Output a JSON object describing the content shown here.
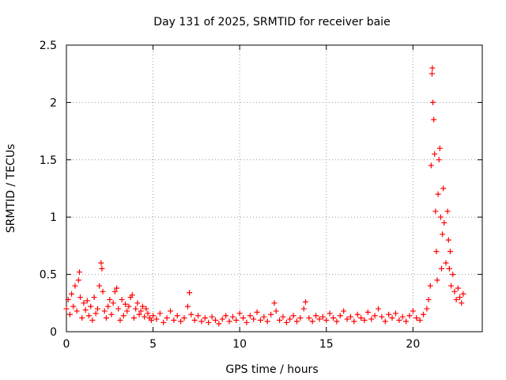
{
  "chart_data": {
    "type": "scatter",
    "title": "Day 131 of 2025, SRMTID for receiver baie",
    "xlabel": "GPS time / hours",
    "ylabel": "SRMTID / TECUs",
    "xlim": [
      0,
      24
    ],
    "ylim": [
      0,
      2.5
    ],
    "grid": true,
    "marker": "+",
    "color": "#ff0000",
    "xticks": [
      0,
      5,
      10,
      15,
      20
    ],
    "xtick_labels": [
      "0",
      "5",
      "10",
      "15",
      "20"
    ],
    "yticks": [
      0,
      0.5,
      1,
      1.5,
      2,
      2.5
    ],
    "ytick_labels": [
      "0",
      "0.5",
      "1",
      "1.5",
      "2",
      "2.5"
    ],
    "series": [
      {
        "name": "SRMTID",
        "points": [
          [
            0.0,
            0.2
          ],
          [
            0.1,
            0.28
          ],
          [
            0.2,
            0.15
          ],
          [
            0.3,
            0.33
          ],
          [
            0.4,
            0.22
          ],
          [
            0.5,
            0.4
          ],
          [
            0.6,
            0.18
          ],
          [
            0.7,
            0.45
          ],
          [
            0.75,
            0.52
          ],
          [
            0.8,
            0.3
          ],
          [
            0.9,
            0.12
          ],
          [
            1.0,
            0.25
          ],
          [
            1.1,
            0.19
          ],
          [
            1.2,
            0.27
          ],
          [
            1.3,
            0.14
          ],
          [
            1.4,
            0.22
          ],
          [
            1.5,
            0.1
          ],
          [
            1.6,
            0.3
          ],
          [
            1.7,
            0.16
          ],
          [
            1.8,
            0.2
          ],
          [
            1.9,
            0.4
          ],
          [
            2.0,
            0.6
          ],
          [
            2.05,
            0.55
          ],
          [
            2.1,
            0.35
          ],
          [
            2.2,
            0.18
          ],
          [
            2.3,
            0.12
          ],
          [
            2.4,
            0.22
          ],
          [
            2.5,
            0.28
          ],
          [
            2.6,
            0.15
          ],
          [
            2.7,
            0.25
          ],
          [
            2.8,
            0.35
          ],
          [
            2.9,
            0.38
          ],
          [
            3.0,
            0.2
          ],
          [
            3.1,
            0.1
          ],
          [
            3.2,
            0.28
          ],
          [
            3.3,
            0.14
          ],
          [
            3.4,
            0.24
          ],
          [
            3.5,
            0.18
          ],
          [
            3.6,
            0.22
          ],
          [
            3.7,
            0.3
          ],
          [
            3.8,
            0.32
          ],
          [
            3.9,
            0.12
          ],
          [
            4.0,
            0.2
          ],
          [
            4.1,
            0.25
          ],
          [
            4.2,
            0.15
          ],
          [
            4.3,
            0.18
          ],
          [
            4.4,
            0.22
          ],
          [
            4.5,
            0.13
          ],
          [
            4.6,
            0.2
          ],
          [
            4.7,
            0.16
          ],
          [
            4.8,
            0.12
          ],
          [
            4.9,
            0.1
          ],
          [
            5.0,
            0.14
          ],
          [
            5.2,
            0.11
          ],
          [
            5.4,
            0.16
          ],
          [
            5.6,
            0.08
          ],
          [
            5.8,
            0.12
          ],
          [
            6.0,
            0.18
          ],
          [
            6.2,
            0.1
          ],
          [
            6.4,
            0.14
          ],
          [
            6.6,
            0.09
          ],
          [
            6.8,
            0.12
          ],
          [
            7.0,
            0.22
          ],
          [
            7.1,
            0.34
          ],
          [
            7.2,
            0.15
          ],
          [
            7.4,
            0.1
          ],
          [
            7.6,
            0.14
          ],
          [
            7.8,
            0.09
          ],
          [
            8.0,
            0.12
          ],
          [
            8.2,
            0.08
          ],
          [
            8.4,
            0.13
          ],
          [
            8.6,
            0.1
          ],
          [
            8.8,
            0.07
          ],
          [
            9.0,
            0.11
          ],
          [
            9.2,
            0.14
          ],
          [
            9.4,
            0.09
          ],
          [
            9.6,
            0.13
          ],
          [
            9.8,
            0.1
          ],
          [
            10.0,
            0.16
          ],
          [
            10.2,
            0.12
          ],
          [
            10.4,
            0.08
          ],
          [
            10.6,
            0.14
          ],
          [
            10.8,
            0.11
          ],
          [
            11.0,
            0.17
          ],
          [
            11.2,
            0.1
          ],
          [
            11.4,
            0.13
          ],
          [
            11.6,
            0.09
          ],
          [
            11.8,
            0.15
          ],
          [
            12.0,
            0.25
          ],
          [
            12.1,
            0.18
          ],
          [
            12.3,
            0.1
          ],
          [
            12.5,
            0.13
          ],
          [
            12.7,
            0.08
          ],
          [
            12.9,
            0.11
          ],
          [
            13.1,
            0.14
          ],
          [
            13.3,
            0.09
          ],
          [
            13.5,
            0.12
          ],
          [
            13.7,
            0.2
          ],
          [
            13.8,
            0.26
          ],
          [
            14.0,
            0.12
          ],
          [
            14.2,
            0.09
          ],
          [
            14.4,
            0.14
          ],
          [
            14.6,
            0.11
          ],
          [
            14.8,
            0.13
          ],
          [
            15.0,
            0.1
          ],
          [
            15.2,
            0.16
          ],
          [
            15.4,
            0.12
          ],
          [
            15.6,
            0.09
          ],
          [
            15.8,
            0.14
          ],
          [
            16.0,
            0.18
          ],
          [
            16.2,
            0.11
          ],
          [
            16.4,
            0.13
          ],
          [
            16.6,
            0.09
          ],
          [
            16.8,
            0.15
          ],
          [
            17.0,
            0.12
          ],
          [
            17.2,
            0.1
          ],
          [
            17.4,
            0.17
          ],
          [
            17.6,
            0.11
          ],
          [
            17.8,
            0.14
          ],
          [
            18.0,
            0.2
          ],
          [
            18.2,
            0.13
          ],
          [
            18.4,
            0.09
          ],
          [
            18.6,
            0.15
          ],
          [
            18.8,
            0.12
          ],
          [
            19.0,
            0.16
          ],
          [
            19.2,
            0.1
          ],
          [
            19.4,
            0.13
          ],
          [
            19.6,
            0.09
          ],
          [
            19.8,
            0.14
          ],
          [
            20.0,
            0.18
          ],
          [
            20.2,
            0.12
          ],
          [
            20.4,
            0.1
          ],
          [
            20.6,
            0.15
          ],
          [
            20.8,
            0.2
          ],
          [
            20.9,
            0.28
          ],
          [
            21.0,
            0.4
          ],
          [
            21.05,
            1.45
          ],
          [
            21.1,
            2.25
          ],
          [
            21.12,
            2.3
          ],
          [
            21.15,
            2.0
          ],
          [
            21.2,
            1.85
          ],
          [
            21.25,
            1.55
          ],
          [
            21.3,
            1.05
          ],
          [
            21.35,
            0.7
          ],
          [
            21.4,
            0.45
          ],
          [
            21.45,
            1.2
          ],
          [
            21.5,
            1.5
          ],
          [
            21.55,
            1.6
          ],
          [
            21.6,
            1.0
          ],
          [
            21.65,
            0.55
          ],
          [
            21.7,
            0.85
          ],
          [
            21.75,
            1.25
          ],
          [
            21.8,
            0.95
          ],
          [
            21.9,
            0.6
          ],
          [
            22.0,
            1.05
          ],
          [
            22.05,
            0.8
          ],
          [
            22.1,
            0.55
          ],
          [
            22.15,
            0.7
          ],
          [
            22.2,
            0.4
          ],
          [
            22.3,
            0.5
          ],
          [
            22.4,
            0.35
          ],
          [
            22.5,
            0.28
          ],
          [
            22.6,
            0.38
          ],
          [
            22.7,
            0.3
          ],
          [
            22.8,
            0.25
          ],
          [
            22.9,
            0.33
          ]
        ]
      }
    ]
  }
}
